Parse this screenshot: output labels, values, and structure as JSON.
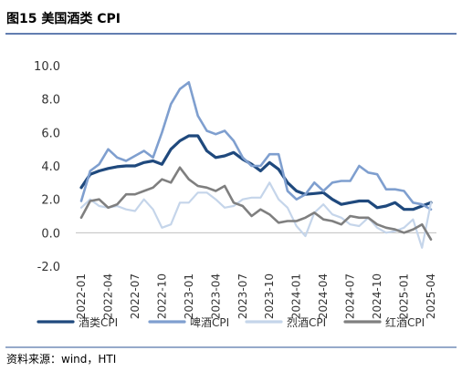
{
  "figure": {
    "title": "图15 美国酒类 CPI",
    "source": "资料来源：wind，HTI"
  },
  "chart_data": {
    "type": "line",
    "x": [
      "2022-01",
      "2022-02",
      "2022-03",
      "2022-04",
      "2022-05",
      "2022-06",
      "2022-07",
      "2022-08",
      "2022-09",
      "2022-10",
      "2022-11",
      "2022-12",
      "2023-01",
      "2023-02",
      "2023-03",
      "2023-04",
      "2023-05",
      "2023-06",
      "2023-07",
      "2023-08",
      "2023-09",
      "2023-10",
      "2023-11",
      "2023-12",
      "2024-01",
      "2024-02",
      "2024-03",
      "2024-04",
      "2024-05",
      "2024-06",
      "2024-07",
      "2024-08",
      "2024-09",
      "2024-10",
      "2024-11",
      "2024-12",
      "2025-01",
      "2025-02",
      "2025-03",
      "2025-04"
    ],
    "x_tick_labels": [
      "2022-01",
      "2022-04",
      "2022-07",
      "2022-10",
      "2023-01",
      "2023-04",
      "2023-07",
      "2023-10",
      "2024-01",
      "2024-04",
      "2024-07",
      "2024-10",
      "2025-01",
      "2025-04"
    ],
    "y_ticks": [
      "10.0",
      "8.0",
      "6.0",
      "4.0",
      "2.0",
      "0.0",
      "-2.0"
    ],
    "ylim": [
      -2,
      10
    ],
    "legend_position": "bottom",
    "grid": false,
    "series": [
      {
        "name": "酒类CPI",
        "color": "#1F497D",
        "width": 3.2,
        "values": [
          2.7,
          3.5,
          3.7,
          3.85,
          3.95,
          4.0,
          4.0,
          4.2,
          4.3,
          4.1,
          5.0,
          5.5,
          5.8,
          5.8,
          4.9,
          4.5,
          4.6,
          4.8,
          4.4,
          4.1,
          3.7,
          4.2,
          3.8,
          3.0,
          2.5,
          2.3,
          2.35,
          2.4,
          2.0,
          1.7,
          1.8,
          1.9,
          1.9,
          1.5,
          1.6,
          1.8,
          1.4,
          1.4,
          1.6,
          1.8
        ]
      },
      {
        "name": "啤酒CPI",
        "color": "#7F9FCF",
        "width": 2.6,
        "values": [
          1.9,
          3.7,
          4.1,
          5.0,
          4.5,
          4.3,
          4.6,
          4.9,
          4.5,
          6.0,
          7.7,
          8.6,
          9.0,
          7.0,
          6.1,
          5.9,
          6.1,
          5.5,
          4.5,
          4.0,
          4.0,
          4.7,
          4.7,
          2.5,
          2.0,
          2.3,
          3.0,
          2.5,
          3.0,
          3.1,
          3.1,
          4.0,
          3.6,
          3.5,
          2.6,
          2.6,
          2.5,
          1.8,
          1.7,
          1.4
        ]
      },
      {
        "name": "烈酒CPI",
        "color": "#C5D5EA",
        "width": 2.2,
        "values": [
          1.5,
          2.0,
          1.6,
          1.5,
          1.6,
          1.4,
          1.3,
          2.0,
          1.4,
          0.3,
          0.5,
          1.8,
          1.8,
          2.4,
          2.4,
          2.0,
          1.5,
          1.6,
          2.0,
          2.1,
          2.1,
          3.0,
          2.0,
          1.5,
          0.4,
          -0.2,
          1.2,
          1.7,
          1.1,
          0.9,
          0.5,
          0.4,
          0.9,
          0.3,
          0.0,
          0.1,
          0.3,
          0.8,
          -0.9,
          1.8
        ]
      },
      {
        "name": "红酒CPI",
        "color": "#7F7F7F",
        "width": 2.6,
        "values": [
          0.9,
          1.9,
          2.0,
          1.5,
          1.7,
          2.3,
          2.3,
          2.5,
          2.7,
          3.2,
          3.0,
          3.9,
          3.2,
          2.8,
          2.7,
          2.5,
          2.8,
          1.8,
          1.6,
          1.0,
          1.4,
          1.1,
          0.6,
          0.7,
          0.7,
          0.9,
          1.2,
          0.8,
          0.7,
          0.5,
          1.0,
          0.9,
          0.9,
          0.5,
          0.3,
          0.2,
          0.0,
          0.2,
          0.5,
          -0.4
        ]
      }
    ]
  }
}
